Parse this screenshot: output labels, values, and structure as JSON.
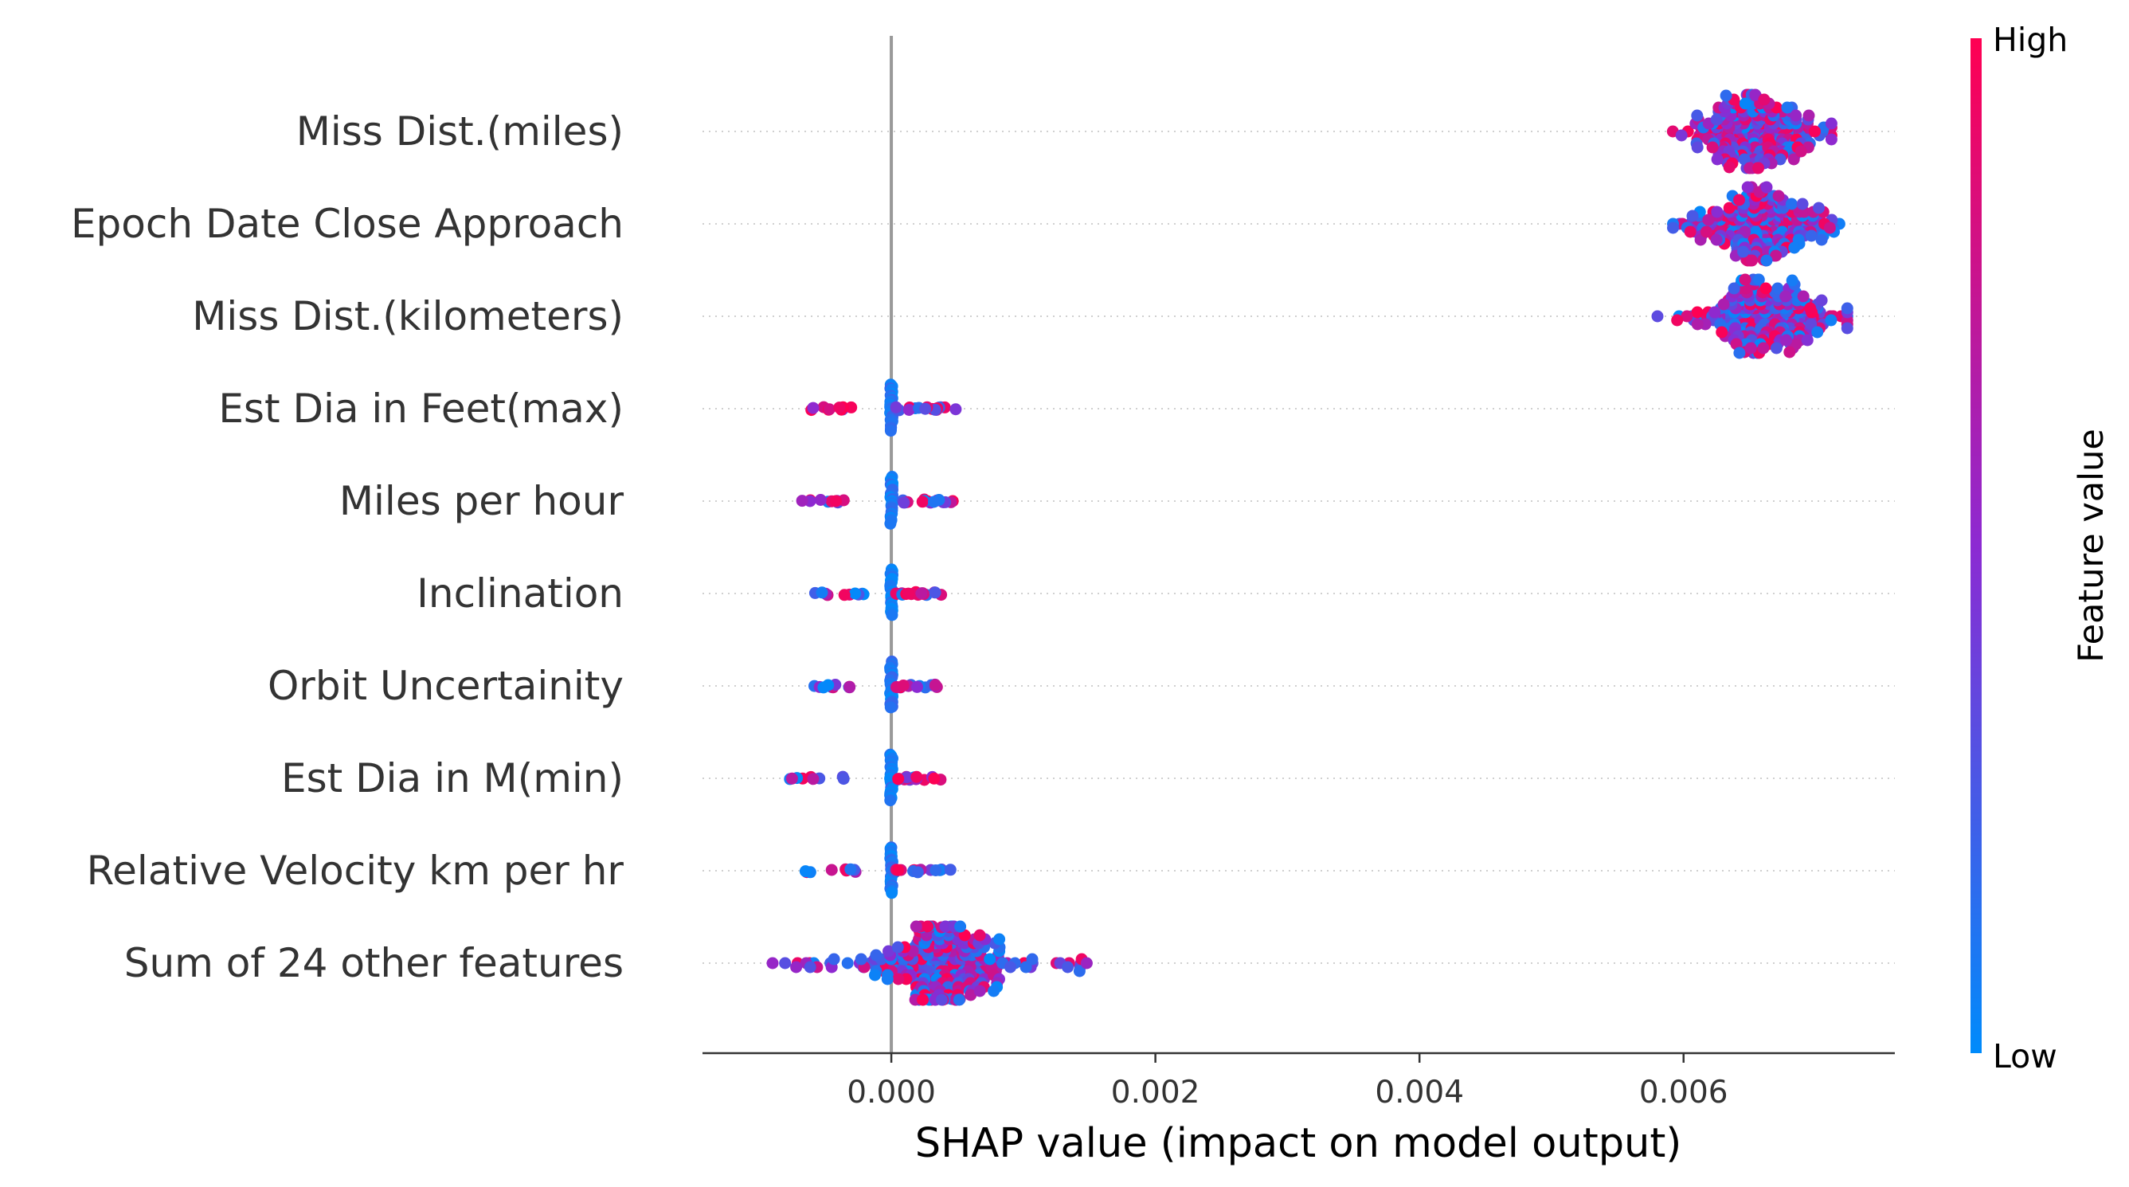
{
  "chart_data": {
    "type": "scatter",
    "subtype": "shap-beeswarm",
    "xlabel": "SHAP value (impact on model output)",
    "xlim": [
      -0.00143,
      0.0076
    ],
    "xticks": [
      0.0,
      0.002,
      0.004,
      0.006
    ],
    "xtick_labels": [
      "0.000",
      "0.002",
      "0.004",
      "0.006"
    ],
    "grid": "horizontal dotted row guides",
    "colorbar": {
      "title": "Feature value",
      "high_label": "High",
      "low_label": "Low",
      "low_color": "#008bfb",
      "mid_color": "#8c2ad2",
      "high_color": "#ff0052"
    },
    "zero_line_color": "#999999",
    "features": [
      {
        "name": "Miss Dist.(miles)",
        "center": 0.00655,
        "spread": 0.00026,
        "min": 0.00585,
        "max": 0.00712,
        "sign": 0,
        "n": 240,
        "wide": true
      },
      {
        "name": "Epoch Date Close Approach",
        "center": 0.0066,
        "spread": 0.00026,
        "min": 0.00592,
        "max": 0.00718,
        "sign": 0,
        "n": 240,
        "wide": true
      },
      {
        "name": "Miss Dist.(kilometers)",
        "center": 0.0066,
        "spread": 0.00028,
        "min": 0.00572,
        "max": 0.00724,
        "sign": 0,
        "n": 240,
        "wide": true
      },
      {
        "name": "Est Dia in Feet(max)",
        "neg_min": -0.00062,
        "neg_max": -0.0003,
        "pos_max": 0.00052,
        "sign": 1
      },
      {
        "name": "Miles per hour",
        "neg_min": -0.0007,
        "neg_max": -0.00035,
        "pos_max": 0.00048,
        "sign": 0
      },
      {
        "name": "Inclination",
        "neg_min": -0.00072,
        "neg_max": -0.0002,
        "pos_max": 0.0004,
        "sign": -1
      },
      {
        "name": "Orbit Uncertainity",
        "neg_min": -0.00068,
        "neg_max": -0.0003,
        "pos_max": 0.00035,
        "sign": 0
      },
      {
        "name": "Est Dia in M(min)",
        "neg_min": -0.0008,
        "neg_max": -0.0003,
        "pos_max": 0.00045,
        "sign": -1
      },
      {
        "name": "Relative Velocity km per hr",
        "neg_min": -0.00065,
        "neg_max": -0.00025,
        "pos_max": 0.00045,
        "sign": 0
      },
      {
        "name": "Sum of 24 other features",
        "center": 0.0004,
        "spread": 0.00025,
        "min": -0.00102,
        "max": 0.0015,
        "sign": 0,
        "n": 300,
        "wide": true,
        "skewed": true
      }
    ]
  }
}
